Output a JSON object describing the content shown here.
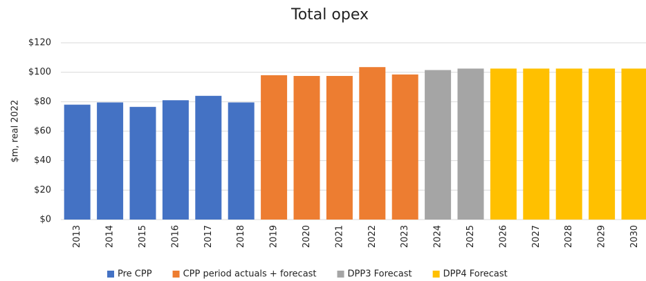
{
  "chart_data": {
    "type": "bar",
    "title": "Total opex",
    "y_label": "$m, real 2022",
    "categories": [
      "2013",
      "2014",
      "2015",
      "2016",
      "2017",
      "2018",
      "2019",
      "2020",
      "2021",
      "2022",
      "2023",
      "2024",
      "2025",
      "2026",
      "2027",
      "2028",
      "2029",
      "2030"
    ],
    "series": [
      {
        "name": "Pre CPP",
        "color": "#4472c4",
        "values": [
          78,
          79.5,
          76.5,
          81,
          84,
          79.5,
          null,
          null,
          null,
          null,
          null,
          null,
          null,
          null,
          null,
          null,
          null,
          null
        ]
      },
      {
        "name": "CPP period actuals + forecast",
        "color": "#ed7d31",
        "values": [
          null,
          null,
          null,
          null,
          null,
          null,
          98,
          97.5,
          97.5,
          103.5,
          98.5,
          null,
          null,
          null,
          null,
          null,
          null,
          null
        ]
      },
      {
        "name": "DPP3 Forecast",
        "color": "#a5a5a5",
        "values": [
          null,
          null,
          null,
          null,
          null,
          null,
          null,
          null,
          null,
          null,
          null,
          101.5,
          102.5,
          null,
          null,
          null,
          null,
          null
        ]
      },
      {
        "name": "DPP4 Forecast",
        "color": "#ffc000",
        "values": [
          null,
          null,
          null,
          null,
          null,
          null,
          null,
          null,
          null,
          null,
          null,
          null,
          null,
          102.5,
          102.5,
          102.5,
          102.5,
          102.5
        ]
      }
    ],
    "ylim": [
      0,
      120
    ],
    "yticks": [
      {
        "value": 0,
        "label": "$0"
      },
      {
        "value": 20,
        "label": "$20"
      },
      {
        "value": 40,
        "label": "$40"
      },
      {
        "value": 60,
        "label": "$60"
      },
      {
        "value": 80,
        "label": "$80"
      },
      {
        "value": 100,
        "label": "$100"
      },
      {
        "value": 120,
        "label": "$120"
      }
    ],
    "grid": true,
    "legend": "bottom"
  }
}
